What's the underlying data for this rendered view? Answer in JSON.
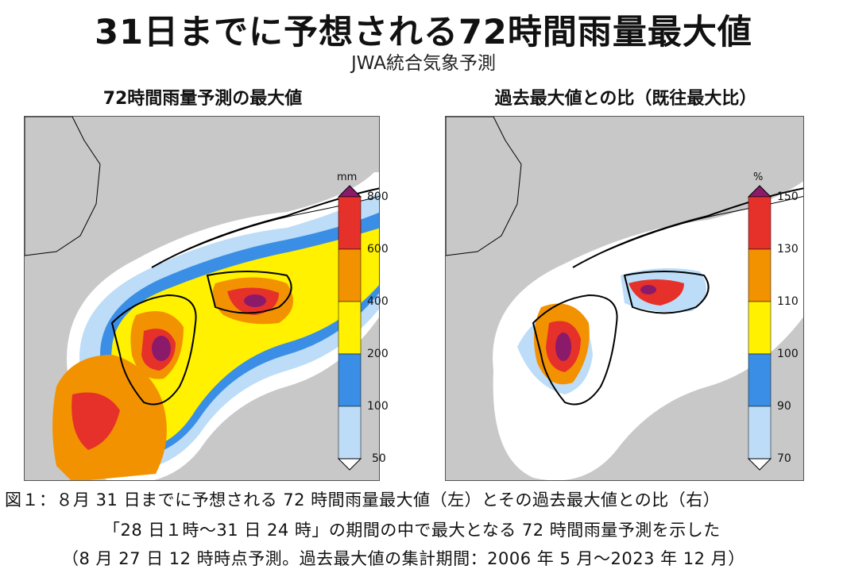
{
  "header": {
    "title": "31日までに予想される72時間雨量最大値",
    "subtitle": "JWA統合気象予測"
  },
  "panels": {
    "left": {
      "title": "72時間雨量予測の最大値",
      "legend": {
        "unit": "mm",
        "ticks": [
          "800",
          "600",
          "400",
          "200",
          "100",
          "50"
        ],
        "colors": [
          "#8b1a6b",
          "#e6312a",
          "#f39200",
          "#fff100",
          "#3a8ee6",
          "#bcdcf7",
          "#ffffff"
        ]
      }
    },
    "right": {
      "title": "過去最大値との比（既往最大比）",
      "legend": {
        "unit": "%",
        "ticks": [
          "150",
          "130",
          "110",
          "100",
          "90",
          "70"
        ],
        "colors": [
          "#8b1a6b",
          "#e6312a",
          "#f39200",
          "#fff100",
          "#3a8ee6",
          "#bcdcf7",
          "#ffffff"
        ]
      }
    }
  },
  "caption": {
    "line1": "図１：８月 31 日までに予想される 72 時間雨量最大値（左）とその過去最大値との比（右）",
    "line2": "「28 日１時～31 日 24 時」の期間の中で最大となる 72 時間雨量予測を示した",
    "line3": "（8 月 27 日 12 時時点予測。過去最大値の集計期間：2006 年 5 月～2023 年 12 月）"
  },
  "colors": {
    "sea": "#c8c8c8",
    "land": "#ffffff",
    "coast": "#000000"
  }
}
